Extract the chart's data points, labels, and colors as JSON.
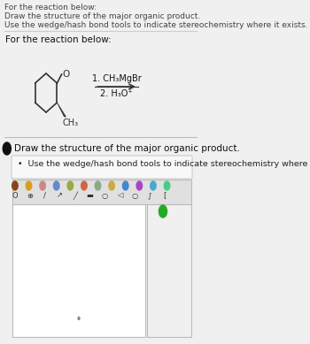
{
  "bg_color": "#f0f0f0",
  "header_text_lines": [
    "For the reaction below:",
    "Draw the structure of the major organic product.",
    "Use the wedge/hash bond tools to indicate stereochemistry where it exists."
  ],
  "reaction_label": "For the reaction below:",
  "reagent_line1": "1. CH₃MgBr",
  "reagent_line2": "2. H₃O⁺",
  "answer_prompt": "Draw the structure of the major organic product.",
  "bullet_text": "Use the wedge/hash bond tools to indicate stereochemistry where it exists.",
  "white": "#ffffff",
  "light_gray": "#e8e8e8",
  "dark_text": "#222222",
  "gray_text": "#555555",
  "panel_bg": "#f7f7f7",
  "toolbar_bg": "#dcdcdc",
  "draw_area_bg": "#ffffff",
  "green_btn": "#22aa22",
  "arrow_color": "#333333"
}
